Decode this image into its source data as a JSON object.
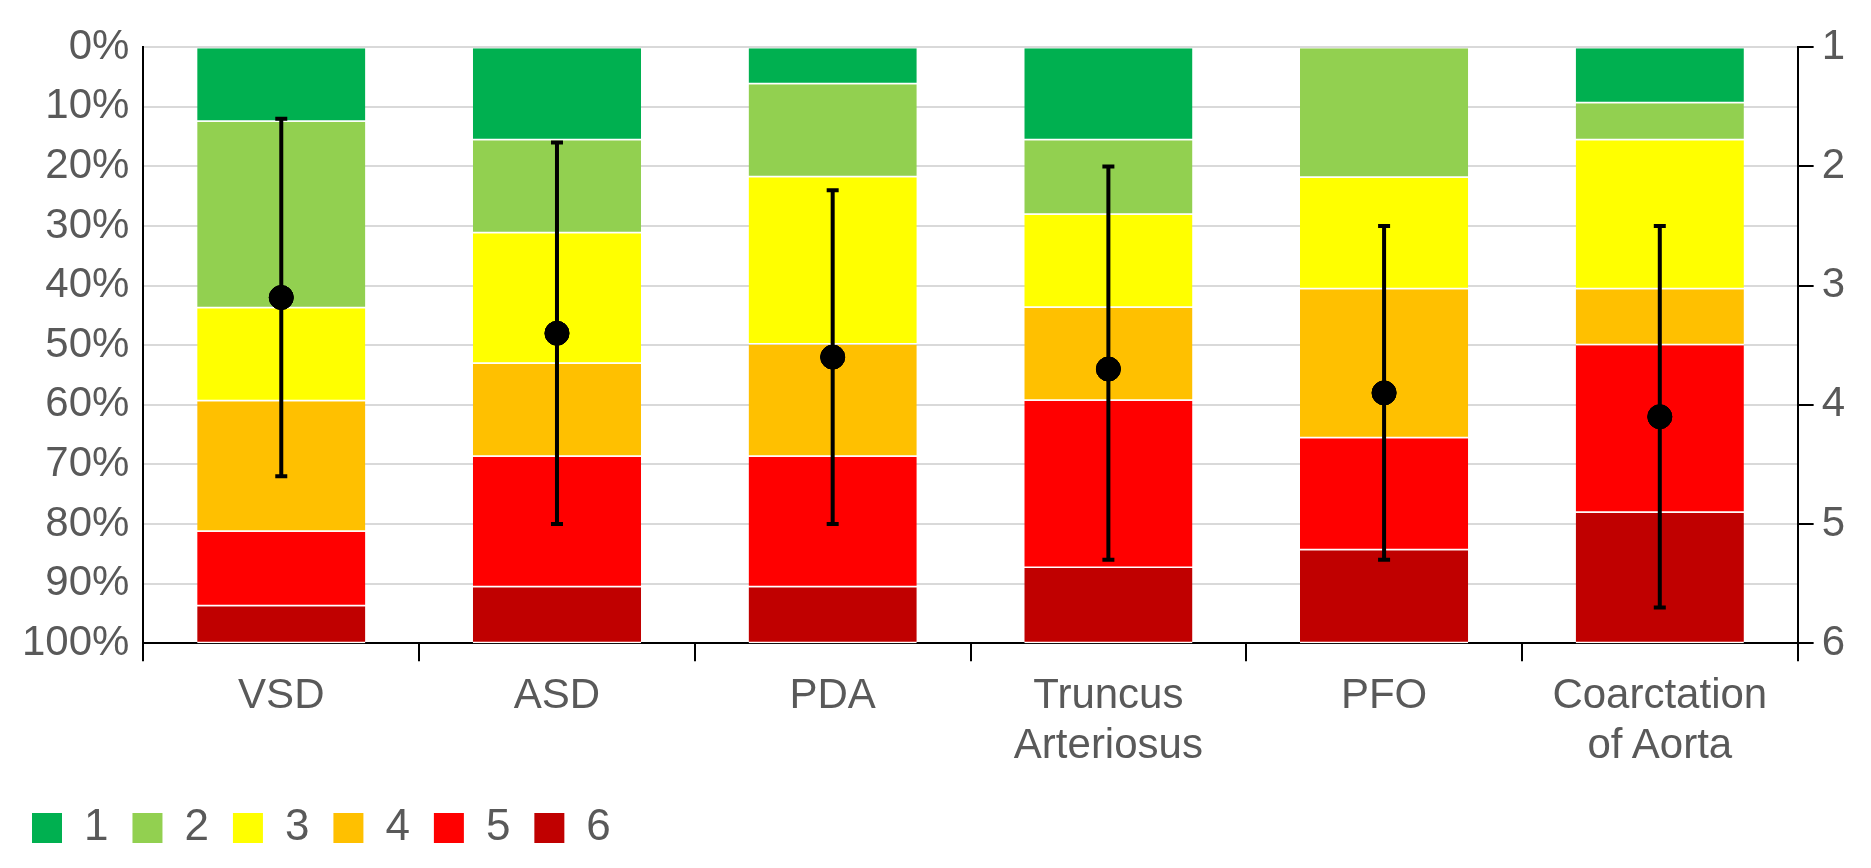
{
  "chart_data": {
    "type": "bar",
    "stacked": true,
    "categories": [
      "VSD",
      "ASD",
      "PDA",
      "Truncus Arteriosus",
      "PFO",
      "Coarctation of Aorta"
    ],
    "series": [
      {
        "name": "1",
        "color": "#00b050",
        "values": [
          12.5,
          15.6,
          6.2,
          15.6,
          0,
          9.4
        ]
      },
      {
        "name": "2",
        "color": "#92d050",
        "values": [
          31.3,
          15.6,
          15.6,
          12.5,
          21.9,
          6.2
        ]
      },
      {
        "name": "3",
        "color": "#ffff00",
        "values": [
          15.6,
          21.9,
          28.1,
          15.6,
          18.7,
          25
        ]
      },
      {
        "name": "4",
        "color": "#ffc000",
        "values": [
          21.9,
          15.6,
          18.8,
          15.6,
          25,
          9.4
        ]
      },
      {
        "name": "5",
        "color": "#ff0000",
        "values": [
          12.5,
          21.9,
          21.9,
          28.1,
          18.8,
          28.1
        ]
      },
      {
        "name": "6",
        "color": "#c00000",
        "values": [
          6.2,
          9.4,
          9.4,
          12.6,
          15.6,
          21.9
        ]
      },
      {
        "type": "scatter",
        "axis": "y2",
        "marker": "circle",
        "color": "#000000",
        "values": [
          3.1,
          3.4,
          3.6,
          3.7,
          3.9,
          4.1
        ],
        "errors": [
          [
            1.6,
            4.6
          ],
          [
            1.8,
            5.0
          ],
          [
            2.2,
            5.0
          ],
          [
            2.0,
            5.3
          ],
          [
            2.5,
            5.3
          ],
          [
            2.5,
            5.7
          ]
        ]
      }
    ],
    "ylim": [
      100,
      0
    ],
    "yticks": [
      {
        "value": 0,
        "label": "0%"
      },
      {
        "value": 10,
        "label": "10%"
      },
      {
        "value": 20,
        "label": "20%"
      },
      {
        "value": 30,
        "label": "30%"
      },
      {
        "value": 40,
        "label": "40%"
      },
      {
        "value": 50,
        "label": "50%"
      },
      {
        "value": 60,
        "label": "60%"
      },
      {
        "value": 70,
        "label": "70%"
      },
      {
        "value": 80,
        "label": "80%"
      },
      {
        "value": 90,
        "label": "90%"
      },
      {
        "value": 100,
        "label": "100%"
      }
    ],
    "y2lim": [
      6,
      1
    ],
    "y2ticks": [
      1,
      2,
      3,
      4,
      5,
      6
    ],
    "grid": "y",
    "legend": "bottom left"
  }
}
